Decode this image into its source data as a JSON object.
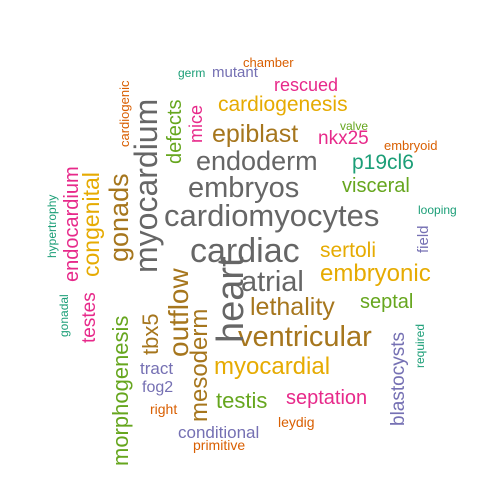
{
  "words": [
    {
      "text": "cardiomyocytes",
      "color": "#666666"
    },
    {
      "text": "cardiac",
      "color": "#666666"
    },
    {
      "text": "embryos",
      "color": "#666666"
    },
    {
      "text": "endoderm",
      "color": "#666666"
    },
    {
      "text": "atrial",
      "color": "#666666"
    },
    {
      "text": "heart",
      "color": "#666666"
    },
    {
      "text": "myocardium",
      "color": "#666666"
    },
    {
      "text": "gonads",
      "color": "#a6761d"
    },
    {
      "text": "ventricular",
      "color": "#a6761d"
    },
    {
      "text": "lethality",
      "color": "#a6761d"
    },
    {
      "text": "epiblast",
      "color": "#a6761d"
    },
    {
      "text": "outflow",
      "color": "#a6761d"
    },
    {
      "text": "mesoderm",
      "color": "#a6761d"
    },
    {
      "text": "tbx5",
      "color": "#a6761d"
    },
    {
      "text": "myocardial",
      "color": "#e6ab02"
    },
    {
      "text": "embryonic",
      "color": "#e6ab02"
    },
    {
      "text": "cardiogenesis",
      "color": "#e6ab02"
    },
    {
      "text": "sertoli",
      "color": "#e6ab02"
    },
    {
      "text": "congenital",
      "color": "#e6ab02"
    },
    {
      "text": "septation",
      "color": "#e7298a"
    },
    {
      "text": "nkx25",
      "color": "#e7298a"
    },
    {
      "text": "rescued",
      "color": "#e7298a"
    },
    {
      "text": "testes",
      "color": "#e7298a"
    },
    {
      "text": "endocardium",
      "color": "#e7298a"
    },
    {
      "text": "mice",
      "color": "#e7298a"
    },
    {
      "text": "visceral",
      "color": "#66a61e"
    },
    {
      "text": "septal",
      "color": "#66a61e"
    },
    {
      "text": "testis",
      "color": "#66a61e"
    },
    {
      "text": "morphogenesis",
      "color": "#66a61e"
    },
    {
      "text": "defects",
      "color": "#66a61e"
    },
    {
      "text": "valve",
      "color": "#66a61e"
    },
    {
      "text": "p19cl6",
      "color": "#1b9e77"
    },
    {
      "text": "germ",
      "color": "#1b9e77"
    },
    {
      "text": "looping",
      "color": "#1b9e77"
    },
    {
      "text": "hypertrophy",
      "color": "#1b9e77"
    },
    {
      "text": "gonadal",
      "color": "#1b9e77"
    },
    {
      "text": "required",
      "color": "#1b9e77"
    },
    {
      "text": "mutant",
      "color": "#7570b3"
    },
    {
      "text": "tract",
      "color": "#7570b3"
    },
    {
      "text": "fog2",
      "color": "#7570b3"
    },
    {
      "text": "conditional",
      "color": "#7570b3"
    },
    {
      "text": "blastocysts",
      "color": "#7570b3"
    },
    {
      "text": "field",
      "color": "#7570b3"
    },
    {
      "text": "chamber",
      "color": "#d95f02"
    },
    {
      "text": "embryoid",
      "color": "#d95f02"
    },
    {
      "text": "cardiogenic",
      "color": "#d95f02"
    },
    {
      "text": "right",
      "color": "#d95f02"
    },
    {
      "text": "leydig",
      "color": "#d95f02"
    },
    {
      "text": "primitive",
      "color": "#d95f02"
    }
  ]
}
